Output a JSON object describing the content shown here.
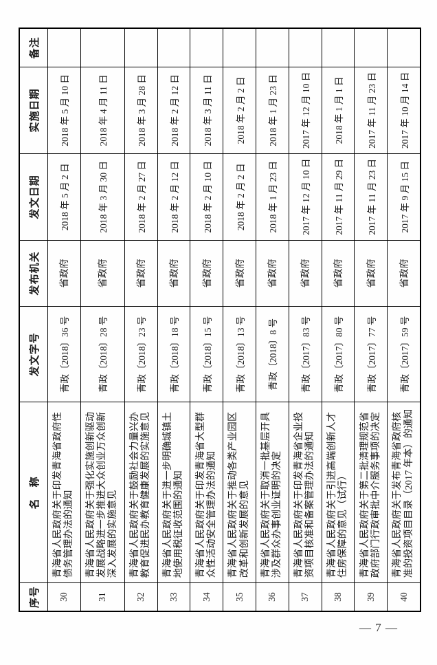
{
  "page": {
    "page_number": "— 7 —"
  },
  "table": {
    "headers": {
      "seq": "序号",
      "name": "名　称",
      "doc_number": "发文字号",
      "issuing_authority": "发布机关",
      "issue_date": "发文日期",
      "implement_date": "实施日期",
      "remarks": "备注"
    },
    "rows": [
      {
        "seq": "30",
        "name": "青海省人民政府关于印发青海省政府性债务管理办法的通知",
        "doc_number": "青政〔2018〕36 号",
        "issuing_authority": "省政府",
        "issue_date": "2018 年 5 月 2 日",
        "implement_date": "2018 年 5 月 10 日",
        "remarks": ""
      },
      {
        "seq": "31",
        "name": "青海省人民政府关于强化实施创新驱动发展战略进一步推进大众创业万众创新深入发展的实施意见",
        "doc_number": "青政〔2018〕28 号",
        "issuing_authority": "省政府",
        "issue_date": "2018 年 3 月 30 日",
        "implement_date": "2018 年 4 月 11 日",
        "remarks": ""
      },
      {
        "seq": "32",
        "name": "青海省人民政府关于鼓励社会力量兴办教育促进民办教育健康发展的实施意见",
        "doc_number": "青政〔2018〕23 号",
        "issuing_authority": "省政府",
        "issue_date": "2018 年 2 月 27 日",
        "implement_date": "2018 年 3 月 28 日",
        "remarks": ""
      },
      {
        "seq": "33",
        "name": "青海省人民政府关于进一步明确城镇土地使用税征收范围的通知",
        "doc_number": "青政〔2018〕18 号",
        "issuing_authority": "省政府",
        "issue_date": "2018 年 2 月 12 日",
        "implement_date": "2018 年 2 月 12 日",
        "remarks": ""
      },
      {
        "seq": "34",
        "name": "青海省人民政府关于印发青海省大型群众性活动安全管理办法的通知",
        "doc_number": "青政〔2018〕15 号",
        "issuing_authority": "省政府",
        "issue_date": "2018 年 2 月 10 日",
        "implement_date": "2018 年 3 月 11 日",
        "remarks": ""
      },
      {
        "seq": "35",
        "name": "青海省人民政府关于推动各类产业园区改革和创新发展的意见",
        "doc_number": "青政〔2018〕13 号",
        "issuing_authority": "省政府",
        "issue_date": "2018 年 2 月 2 日",
        "implement_date": "2018 年 2 月 2 日",
        "remarks": ""
      },
      {
        "seq": "36",
        "name": "青海省人民政府关于取消一批基层开具涉及群众办事创业证明的决定",
        "doc_number": "青政〔2018〕8 号",
        "issuing_authority": "省政府",
        "issue_date": "2018 年 1 月 23 日",
        "implement_date": "2018 年 1 月 23 日",
        "remarks": ""
      },
      {
        "seq": "37",
        "name": "青海省人民政府关于印发青海省企业投资项目核准和备案管理办法的通知",
        "doc_number": "青政〔2017〕83 号",
        "issuing_authority": "省政府",
        "issue_date": "2017 年 12 月 10 日",
        "implement_date": "2017 年 12 月 10 日",
        "remarks": ""
      },
      {
        "seq": "38",
        "name": "青海省人民政府关于引进高端创新人才住房保障的意见（试行）",
        "doc_number": "青政〔2017〕80 号",
        "issuing_authority": "省政府",
        "issue_date": "2017 年 11 月 29 日",
        "implement_date": "2018 年 1 月 1 日",
        "remarks": ""
      },
      {
        "seq": "39",
        "name": "青海省人民政府关于第二批清理规范省政府部门行政审批中介服务事项的决定",
        "doc_number": "青政〔2017〕77 号",
        "issuing_authority": "省政府",
        "issue_date": "2017 年 11 月 23 日",
        "implement_date": "2017 年 11 月 23 日",
        "remarks": ""
      },
      {
        "seq": "40",
        "name": "青海省人民政府关于发布青海省政府核准的投资项目目录（2017 年本）的通知",
        "doc_number": "青政〔2017〕59 号",
        "issuing_authority": "省政府",
        "issue_date": "2017 年 9 月 15 日",
        "implement_date": "2017 年 10 月 14 日",
        "remarks": ""
      }
    ]
  }
}
